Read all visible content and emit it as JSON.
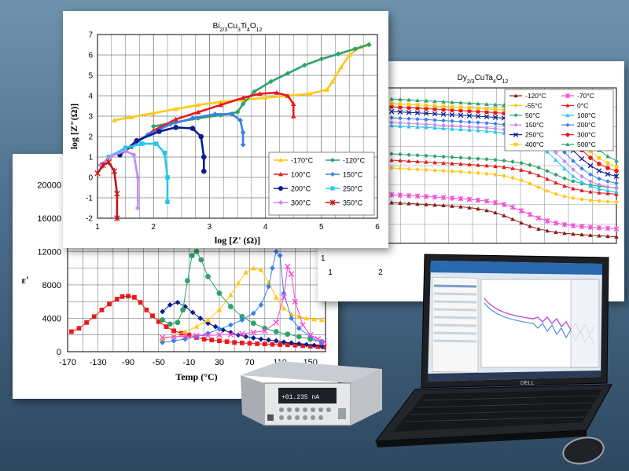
{
  "colors": {
    "background_top": "#6f93ad",
    "background_bottom": "#2d4760",
    "red": "#e8191c",
    "navy": "#0b1c8a",
    "green": "#2ea36a",
    "yellow": "#ffc816",
    "blue_diamond": "#3a7fe6",
    "cyan": "#21c9ea",
    "pink": "#f24ad8",
    "violet": "#c18bf3",
    "dark_red": "#c01515"
  },
  "chart_data": [
    {
      "id": "bi",
      "type": "scatter",
      "title": "Bi2/3Cu3Ti4O12",
      "title_main": "Bi",
      "title_parts": [
        {
          "t": "Bi",
          "sub": false
        },
        {
          "t": "2/3",
          "sub": true
        },
        {
          "t": "Cu",
          "sub": false
        },
        {
          "t": "3",
          "sub": true
        },
        {
          "t": "Ti",
          "sub": false
        },
        {
          "t": "4",
          "sub": true
        },
        {
          "t": "O",
          "sub": false
        },
        {
          "t": "12",
          "sub": true
        }
      ],
      "xlabel": "log [Z' (Ω)]",
      "ylabel": "log [Z\"(Ω)]",
      "xlim": [
        1,
        6
      ],
      "ylim": [
        -2,
        7
      ],
      "xticks": [
        "1",
        "2",
        "3",
        "4",
        "5",
        "6"
      ],
      "yticks": [
        "-2",
        "-1",
        "0",
        "1",
        "2",
        "3",
        "4",
        "5",
        "6",
        "7"
      ],
      "grid": true,
      "legend_position": "bottom-right",
      "series": [
        {
          "name": "-170°C",
          "color": "#ffc816",
          "marker": "triangle",
          "x": [
            1.3,
            1.6,
            2.0,
            2.4,
            2.8,
            3.2,
            3.6,
            4.0,
            4.4,
            4.8,
            5.1,
            5.2,
            5.35,
            5.5,
            5.7,
            5.85
          ],
          "y": [
            2.8,
            2.95,
            3.15,
            3.35,
            3.55,
            3.7,
            3.8,
            3.9,
            4.0,
            4.1,
            4.3,
            4.7,
            5.4,
            6.0,
            6.4,
            6.55
          ]
        },
        {
          "name": "-120°C",
          "color": "#2ea36a",
          "marker": "diamond",
          "x": [
            2.0,
            2.4,
            2.8,
            3.2,
            3.5,
            3.6,
            3.8,
            4.1,
            4.4,
            4.7,
            5.0,
            5.3,
            5.6,
            5.85
          ],
          "y": [
            2.5,
            2.7,
            2.9,
            3.05,
            3.2,
            3.6,
            4.2,
            4.7,
            5.1,
            5.5,
            5.8,
            6.05,
            6.3,
            6.5
          ]
        },
        {
          "name": "100°C",
          "color": "#e8191c",
          "marker": "triangle",
          "x": [
            1.6,
            2.0,
            2.4,
            2.8,
            3.2,
            3.6,
            3.9,
            4.2,
            4.4,
            4.5,
            4.5
          ],
          "y": [
            1.5,
            2.3,
            2.85,
            3.2,
            3.55,
            3.9,
            4.1,
            4.15,
            4.0,
            3.6,
            3.0
          ]
        },
        {
          "name": "150°C",
          "color": "#3a7fe6",
          "marker": "diamond",
          "x": [
            1.5,
            1.9,
            2.3,
            2.7,
            3.1,
            3.4,
            3.55,
            3.6,
            3.6
          ],
          "y": [
            1.3,
            2.1,
            2.6,
            2.9,
            3.1,
            3.1,
            2.8,
            2.2,
            1.6
          ]
        },
        {
          "name": "200°C",
          "color": "#0b1c8a",
          "marker": "circle",
          "x": [
            1.4,
            1.7,
            2.1,
            2.4,
            2.7,
            2.85,
            2.9,
            2.9
          ],
          "y": [
            1.1,
            1.8,
            2.25,
            2.45,
            2.4,
            2.0,
            1.0,
            0.3
          ]
        },
        {
          "name": "250°C",
          "color": "#21c9ea",
          "marker": "square",
          "x": [
            1.2,
            1.5,
            1.8,
            2.05,
            2.2,
            2.25,
            2.25
          ],
          "y": [
            1.0,
            1.45,
            1.65,
            1.65,
            1.2,
            0.0,
            -1.2
          ]
        },
        {
          "name": "300°C",
          "color": "#c18bf3",
          "marker": "diamond",
          "x": [
            1.05,
            1.25,
            1.5,
            1.65,
            1.72,
            1.72
          ],
          "y": [
            0.6,
            1.05,
            1.3,
            1.1,
            0.0,
            -1.5
          ]
        },
        {
          "name": "350°C",
          "color": "#c01515",
          "marker": "star",
          "x": [
            1.0,
            1.1,
            1.2,
            1.3,
            1.35,
            1.35
          ],
          "y": [
            0.2,
            0.6,
            0.75,
            0.3,
            -0.8,
            -2.0
          ]
        }
      ]
    },
    {
      "id": "dy",
      "type": "line",
      "title": "Dy2/3CuTa4O12",
      "title_parts": [
        {
          "t": "Dy",
          "sub": false
        },
        {
          "t": "2/3",
          "sub": true
        },
        {
          "t": "CuTa",
          "sub": false
        },
        {
          "t": "4",
          "sub": true
        },
        {
          "t": "O",
          "sub": false
        },
        {
          "t": "12",
          "sub": true
        }
      ],
      "xticks": [
        "1",
        "2"
      ],
      "yticks": [
        "1"
      ],
      "grid": true,
      "legend_position": "top-right",
      "series": [
        {
          "name": "-120°C",
          "color": "#8b1a1a",
          "marker": "triangle"
        },
        {
          "name": "-70°C",
          "color": "#f24ad8",
          "marker": "star"
        },
        {
          "name": "-55°C",
          "color": "#ffc816",
          "marker": "diamond"
        },
        {
          "name": "0°C",
          "color": "#e8191c",
          "marker": "triangle"
        },
        {
          "name": "50°C",
          "color": "#2ea36a",
          "marker": "diamond"
        },
        {
          "name": "100°C",
          "color": "#21c9ea",
          "marker": "triangle"
        },
        {
          "name": "150°C",
          "color": "#c18bf3",
          "marker": "diamond"
        },
        {
          "name": "200°C",
          "color": "#3a7fe6",
          "marker": "diamond"
        },
        {
          "name": "250°C",
          "color": "#0b1c8a",
          "marker": "x"
        },
        {
          "name": "300°C",
          "color": "#e8191c",
          "marker": "circle"
        },
        {
          "name": "400°C",
          "color": "#ffc816",
          "marker": "square"
        },
        {
          "name": "500°C",
          "color": "#2ea36a",
          "marker": "triangle"
        }
      ]
    },
    {
      "id": "eps",
      "type": "line",
      "ylabel": "ε'",
      "xlabel": "Temp (°C)",
      "xlim": [
        -170,
        170
      ],
      "ylim": [
        0,
        22000
      ],
      "xticks": [
        "-170",
        "-130",
        "-90",
        "-50",
        "-10",
        "30",
        "70",
        "110",
        "150"
      ],
      "yticks": [
        "0",
        "4000",
        "8000",
        "12000",
        "16000",
        "20000"
      ],
      "grid": true,
      "series": [
        {
          "color": "#e8191c",
          "marker": "square",
          "x": [
            -165,
            -155,
            -145,
            -135,
            -125,
            -115,
            -105,
            -98,
            -90,
            -82,
            -74,
            -66,
            -58,
            -50,
            -40,
            -30,
            -20,
            -10,
            0,
            10,
            20,
            30,
            40,
            50,
            60,
            70,
            80,
            90,
            100,
            110,
            120,
            130,
            140,
            150,
            160,
            168
          ],
          "y": [
            2400,
            2800,
            3500,
            4200,
            5000,
            5700,
            6300,
            6600,
            6650,
            6500,
            5900,
            5000,
            4300,
            3600,
            3000,
            2500,
            2200,
            2000,
            1700,
            1500,
            1400,
            1300,
            1200,
            1100,
            1050,
            1000,
            950,
            920,
            880,
            850,
            820,
            780,
            720,
            650,
            600,
            560
          ]
        },
        {
          "color": "#0b1c8a",
          "marker": "diamond",
          "x": [
            -45,
            -35,
            -25,
            -15,
            -5,
            5,
            15,
            25,
            35,
            45,
            55,
            65,
            75,
            85,
            95,
            105,
            115,
            125,
            135,
            145,
            155,
            165
          ],
          "y": [
            4800,
            5600,
            5900,
            5400,
            4700,
            4000,
            3400,
            3000,
            2600,
            2300,
            2000,
            1800,
            1650,
            1500,
            1400,
            1300,
            1150,
            1050,
            950,
            850,
            750,
            650
          ]
        },
        {
          "color": "#ffc816",
          "marker": "triangle",
          "x": [
            -45,
            -30,
            -15,
            0,
            15,
            30,
            45,
            55,
            65,
            75,
            85,
            95,
            105,
            115,
            125,
            135,
            145,
            155,
            165
          ],
          "y": [
            1500,
            1900,
            2400,
            3000,
            3800,
            5000,
            6800,
            8200,
            9500,
            10000,
            9800,
            8300,
            6500,
            5200,
            4500,
            4200,
            4000,
            3900,
            3800
          ]
        },
        {
          "color": "#2ea36a",
          "marker": "circle",
          "x": [
            -45,
            -35,
            -25,
            -18,
            -12,
            -6,
            0,
            6,
            15,
            30,
            45,
            60,
            75,
            90,
            105,
            120,
            135,
            150,
            165
          ],
          "y": [
            3800,
            3300,
            3500,
            5000,
            8500,
            11500,
            12000,
            11000,
            9000,
            7000,
            5400,
            4200,
            3400,
            2800,
            2400,
            2100,
            1800,
            1500,
            1200
          ]
        },
        {
          "color": "#3a7fe6",
          "marker": "diamond",
          "x": [
            -45,
            -30,
            -15,
            0,
            15,
            30,
            45,
            60,
            75,
            85,
            95,
            100,
            105,
            110,
            115,
            125,
            135,
            150,
            165
          ],
          "y": [
            1100,
            1300,
            1500,
            1800,
            2200,
            2700,
            3200,
            3800,
            4600,
            5600,
            7800,
            10000,
            12000,
            11500,
            7000,
            4000,
            2800,
            1800,
            1000
          ]
        },
        {
          "color": "#f24ad8",
          "marker": "x",
          "x": [
            -45,
            -30,
            -15,
            0,
            15,
            30,
            45,
            60,
            75,
            90,
            105,
            115,
            120,
            125,
            130,
            140,
            150,
            160,
            168
          ],
          "y": [
            1700,
            1800,
            1850,
            1900,
            1950,
            2000,
            2050,
            2150,
            2300,
            2500,
            3500,
            6500,
            10200,
            9300,
            6000,
            3200,
            2000,
            1500,
            1200
          ]
        }
      ]
    }
  ],
  "device": {
    "meter_display": "+01.235 nA",
    "laptop_brand": "DELL"
  }
}
